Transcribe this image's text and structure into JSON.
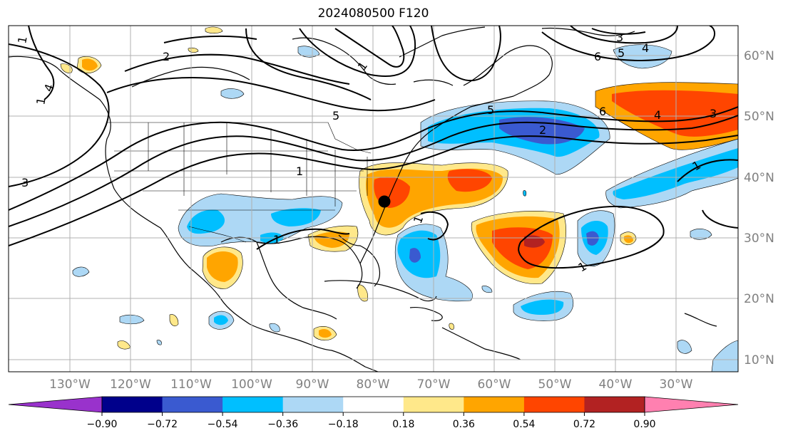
{
  "title": "2024080500 F120",
  "map": {
    "lon_labels": [
      "130°W",
      "120°W",
      "110°W",
      "100°W",
      "90°W",
      "80°W",
      "70°W",
      "60°W",
      "50°W",
      "40°W",
      "30°W"
    ],
    "lat_labels": [
      "60°N",
      "50°N",
      "40°N",
      "30°N",
      "20°N",
      "10°N"
    ],
    "contour_labels": [
      "1",
      "2",
      "3",
      "4",
      "5",
      "6"
    ],
    "marker": "point-marker",
    "colors": {
      "light_blue": "#add8f5",
      "blue": "#00bfff",
      "medium_blue": "#3a5ad0",
      "navy": "#00008b",
      "purple": "#9932cc",
      "light_yellow": "#ffe88a",
      "orange": "#ffa500",
      "red_orange": "#ff4500",
      "dark_red": "#b22222",
      "pink": "#ff80b0"
    }
  },
  "colorbar": {
    "ticks": [
      "−0.90",
      "−0.72",
      "−0.54",
      "−0.36",
      "−0.18",
      "0.18",
      "0.36",
      "0.54",
      "0.72",
      "0.90"
    ],
    "colors": [
      "#9932cc",
      "#00008b",
      "#3a5ad0",
      "#00bfff",
      "#add8f5",
      "#ffffff",
      "#ffe88a",
      "#ffa500",
      "#ff4500",
      "#b22222",
      "#ff80b0"
    ]
  }
}
